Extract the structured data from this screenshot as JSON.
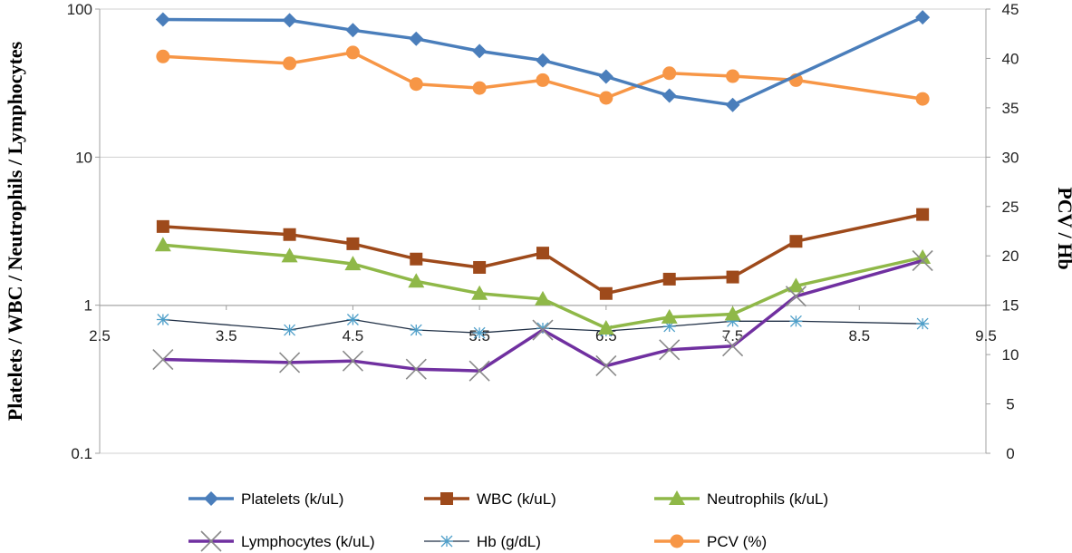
{
  "chart_data": {
    "type": "line",
    "title": "",
    "xlabel": "",
    "ylabel_left": "Platelets / WBC / Neutrophils / Lymphocytes",
    "ylabel_right": "PCV / Hb",
    "x_ticks": [
      "2.5",
      "3.5",
      "4.5",
      "5.5",
      "6.5",
      "7.5",
      "8.5",
      "9.5"
    ],
    "xlim": [
      2.5,
      9.5
    ],
    "y_left_scale": "log",
    "y_left_lim": [
      0.1,
      100
    ],
    "y_left_ticks": [
      "0.1",
      "1",
      "10",
      "100"
    ],
    "y_right_lim": [
      0,
      45
    ],
    "y_right_ticks": [
      "0",
      "5",
      "10",
      "15",
      "20",
      "25",
      "30",
      "35",
      "40",
      "45"
    ],
    "grid": "horizontal major gridlines at left-axis decades",
    "legend_placement": "bottom",
    "series": [
      {
        "name": "Platelets (k/uL)",
        "axis": "left",
        "color": "#4a7ebb",
        "marker": "diamond",
        "points": [
          [
            3,
            85
          ],
          [
            4,
            84
          ],
          [
            4.5,
            72
          ],
          [
            5,
            63
          ],
          [
            5.5,
            52
          ],
          [
            6,
            45
          ],
          [
            6.5,
            35
          ],
          [
            7,
            26
          ],
          [
            7.5,
            22.5
          ],
          [
            9,
            88
          ]
        ]
      },
      {
        "name": "WBC (k/uL)",
        "axis": "left",
        "color": "#9e4a1b",
        "marker": "square",
        "points": [
          [
            3,
            3.4
          ],
          [
            4,
            3.0
          ],
          [
            4.5,
            2.6
          ],
          [
            5,
            2.05
          ],
          [
            5.5,
            1.8
          ],
          [
            6,
            2.25
          ],
          [
            6.5,
            1.2
          ],
          [
            7,
            1.5
          ],
          [
            7.5,
            1.55
          ],
          [
            8,
            2.7
          ],
          [
            9,
            4.1
          ]
        ]
      },
      {
        "name": "Neutrophils  (k/uL)",
        "axis": "left",
        "color": "#8fb848",
        "marker": "triangle",
        "points": [
          [
            3,
            2.55
          ],
          [
            4,
            2.15
          ],
          [
            4.5,
            1.9
          ],
          [
            5,
            1.45
          ],
          [
            5.5,
            1.2
          ],
          [
            6,
            1.1
          ],
          [
            6.5,
            0.7
          ],
          [
            7,
            0.83
          ],
          [
            7.5,
            0.87
          ],
          [
            8,
            1.35
          ],
          [
            9,
            2.1
          ]
        ]
      },
      {
        "name": "Lymphocytes (k/uL)",
        "axis": "left",
        "color": "#7030a0",
        "marker": "x",
        "points": [
          [
            3,
            0.43
          ],
          [
            4,
            0.41
          ],
          [
            4.5,
            0.42
          ],
          [
            5,
            0.37
          ],
          [
            5.5,
            0.36
          ],
          [
            6,
            0.68
          ],
          [
            6.5,
            0.39
          ],
          [
            7,
            0.5
          ],
          [
            7.5,
            0.53
          ],
          [
            8,
            1.15
          ],
          [
            9,
            2.0
          ]
        ]
      },
      {
        "name": "Hb (g/dL)",
        "axis": "left",
        "color": "#1f2f45",
        "marker": "asterisk",
        "points": [
          [
            3,
            0.8
          ],
          [
            4,
            0.68
          ],
          [
            4.5,
            0.8
          ],
          [
            5,
            0.68
          ],
          [
            5.5,
            0.65
          ],
          [
            6,
            0.7
          ],
          [
            6.5,
            0.67
          ],
          [
            7,
            0.72
          ],
          [
            7.5,
            0.78
          ],
          [
            8,
            0.78
          ],
          [
            9,
            0.75
          ]
        ]
      },
      {
        "name": "PCV (%)",
        "axis": "right",
        "color": "#f79646",
        "marker": "circle",
        "points": [
          [
            3,
            40.2
          ],
          [
            4,
            39.5
          ],
          [
            4.5,
            40.6
          ],
          [
            5,
            37.4
          ],
          [
            5.5,
            37.0
          ],
          [
            6,
            37.8
          ],
          [
            6.5,
            36.0
          ],
          [
            7,
            38.5
          ],
          [
            7.5,
            38.2
          ],
          [
            8,
            37.8
          ],
          [
            9,
            35.9
          ]
        ]
      }
    ]
  }
}
